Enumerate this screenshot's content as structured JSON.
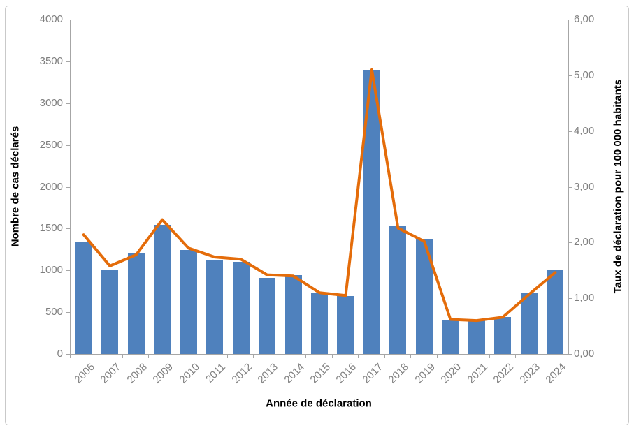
{
  "chart_data": {
    "type": "bar",
    "subtype": "bar-and-line-dual-axis",
    "categories": [
      "2006",
      "2007",
      "2008",
      "2009",
      "2010",
      "2011",
      "2012",
      "2013",
      "2014",
      "2015",
      "2016",
      "2017",
      "2018",
      "2019",
      "2020",
      "2021",
      "2022",
      "2023",
      "2024"
    ],
    "series": [
      {
        "name": "Nombre de cas déclarés",
        "type": "bar",
        "axis": "left",
        "color": "#4f81bd",
        "values": [
          1345,
          1005,
          1200,
          1548,
          1245,
          1125,
          1100,
          912,
          940,
          737,
          690,
          3400,
          1530,
          1372,
          405,
          398,
          440,
          737,
          1012
        ]
      },
      {
        "name": "Taux de déclaration pour 100 000 habitants",
        "type": "line",
        "axis": "right",
        "color": "#e46c0a",
        "values": [
          2.14,
          1.58,
          1.78,
          2.41,
          1.9,
          1.74,
          1.7,
          1.42,
          1.4,
          1.1,
          1.05,
          5.1,
          2.26,
          2.02,
          0.62,
          0.6,
          0.66,
          1.07,
          1.46
        ]
      }
    ],
    "left_axis": {
      "title": "Nombre de cas déclarés",
      "min": 0,
      "max": 4000,
      "tick_step": 500,
      "tick_labels": [
        "0",
        "500",
        "1000",
        "1500",
        "2000",
        "2500",
        "3000",
        "3500",
        "4000"
      ]
    },
    "right_axis": {
      "title": "Taux de déclaration pour 100 000 habitants",
      "min": 0,
      "max": 6,
      "tick_step": 1,
      "tick_labels": [
        "0,00",
        "1,00",
        "2,00",
        "3,00",
        "4,00",
        "5,00",
        "6,00"
      ]
    },
    "x_axis": {
      "title": "Année de déclaration"
    },
    "grid": false,
    "legend_position": "none",
    "style": {
      "axis_line_color": "#a6a6a6",
      "tick_label_color": "#7f7f7f",
      "background": "#ffffff",
      "frame_border_color": "#c9c9c9"
    }
  }
}
